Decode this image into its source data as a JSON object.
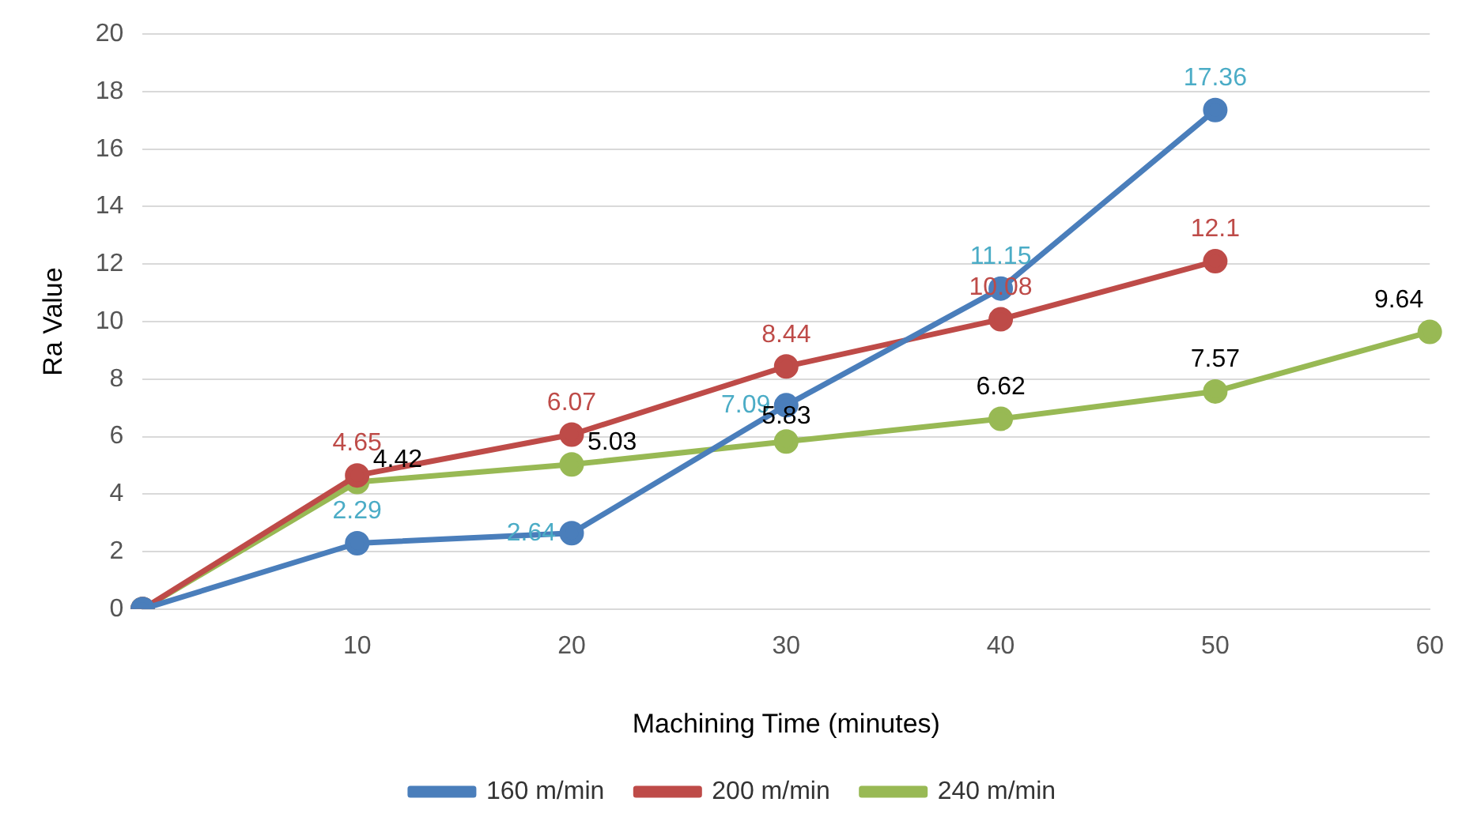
{
  "chart_data": {
    "type": "line",
    "xlabel": "Machining Time (minutes)",
    "ylabel": "Ra Value",
    "categories": [
      null,
      "10",
      "20",
      "30",
      "40",
      "50",
      "60"
    ],
    "series": [
      {
        "name": "160 m/min",
        "color": "#4a7ebb",
        "values": [
          0,
          2.29,
          2.64,
          7.09,
          11.15,
          17.36,
          null
        ],
        "value_labels": [
          null,
          "2.29",
          "2.64",
          "7.09",
          "11.15",
          "17.36",
          null
        ]
      },
      {
        "name": "200 m/min",
        "color": "#be4b48",
        "values": [
          0,
          4.65,
          6.07,
          8.44,
          10.08,
          12.1,
          null
        ],
        "value_labels": [
          null,
          "4.65",
          "6.07",
          "8.44",
          "10.08",
          "12.1",
          null
        ]
      },
      {
        "name": "240 m/min",
        "color": "#98b954",
        "values": [
          0,
          4.42,
          5.03,
          5.83,
          6.62,
          7.57,
          9.64
        ],
        "value_labels": [
          null,
          "4.42",
          "5.03",
          "5.83",
          "6.62",
          "7.57",
          "9.64"
        ]
      }
    ],
    "ylim": [
      0,
      20
    ],
    "yticks": [
      0,
      2,
      4,
      6,
      8,
      10,
      12,
      14,
      16,
      18,
      20
    ],
    "grid": "y",
    "legend": "bottom",
    "marker": "circle",
    "line_style": "solid"
  }
}
